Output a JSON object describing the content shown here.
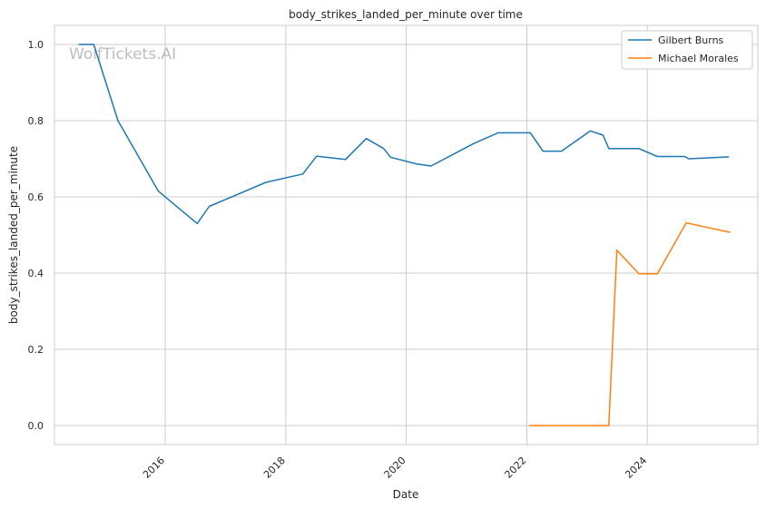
{
  "watermark": "WolfTickets.AI",
  "chart_data": {
    "type": "line",
    "title": "body_strikes_landed_per_minute over time",
    "xlabel": "Date",
    "ylabel": "body_strikes_landed_per_minute",
    "x_type": "date",
    "xlim": [
      "2014-03-01",
      "2025-11-01"
    ],
    "ylim": [
      -0.05,
      1.05
    ],
    "x_ticks": [
      "2016",
      "2018",
      "2020",
      "2022",
      "2024"
    ],
    "y_ticks": [
      "0.0",
      "0.2",
      "0.4",
      "0.6",
      "0.8",
      "1.0"
    ],
    "grid": true,
    "legend_position": "top-right",
    "series": [
      {
        "name": "Gilbert Burns",
        "color": "#1f77b4",
        "points": [
          {
            "x": "2014-07-25",
            "y": 1.0
          },
          {
            "x": "2014-10-25",
            "y": 1.0
          },
          {
            "x": "2015-03-21",
            "y": 0.8
          },
          {
            "x": "2015-11-21",
            "y": 0.615
          },
          {
            "x": "2016-07-13",
            "y": 0.53
          },
          {
            "x": "2016-09-24",
            "y": 0.575
          },
          {
            "x": "2017-09-02",
            "y": 0.638
          },
          {
            "x": "2018-04-14",
            "y": 0.66
          },
          {
            "x": "2018-07-07",
            "y": 0.707
          },
          {
            "x": "2018-12-29",
            "y": 0.698
          },
          {
            "x": "2019-05-04",
            "y": 0.753
          },
          {
            "x": "2019-08-17",
            "y": 0.727
          },
          {
            "x": "2019-09-28",
            "y": 0.704
          },
          {
            "x": "2020-02-29",
            "y": 0.687
          },
          {
            "x": "2020-05-30",
            "y": 0.681
          },
          {
            "x": "2021-02-13",
            "y": 0.74
          },
          {
            "x": "2021-07-10",
            "y": 0.768
          },
          {
            "x": "2022-01-22",
            "y": 0.768
          },
          {
            "x": "2022-04-09",
            "y": 0.72
          },
          {
            "x": "2022-07-30",
            "y": 0.72
          },
          {
            "x": "2023-01-21",
            "y": 0.773
          },
          {
            "x": "2023-04-08",
            "y": 0.762
          },
          {
            "x": "2023-05-13",
            "y": 0.727
          },
          {
            "x": "2023-11-11",
            "y": 0.727
          },
          {
            "x": "2024-03-02",
            "y": 0.706
          },
          {
            "x": "2024-08-17",
            "y": 0.706
          },
          {
            "x": "2024-09-07",
            "y": 0.7
          },
          {
            "x": "2025-05-10",
            "y": 0.705
          }
        ]
      },
      {
        "name": "Michael Morales",
        "color": "#ff7f0e",
        "points": [
          {
            "x": "2022-01-15",
            "y": 0.0
          },
          {
            "x": "2023-05-13",
            "y": 0.0
          },
          {
            "x": "2023-07-01",
            "y": 0.46
          },
          {
            "x": "2023-11-11",
            "y": 0.398
          },
          {
            "x": "2024-03-02",
            "y": 0.398
          },
          {
            "x": "2024-08-24",
            "y": 0.532
          },
          {
            "x": "2025-05-17",
            "y": 0.507
          }
        ]
      }
    ]
  }
}
